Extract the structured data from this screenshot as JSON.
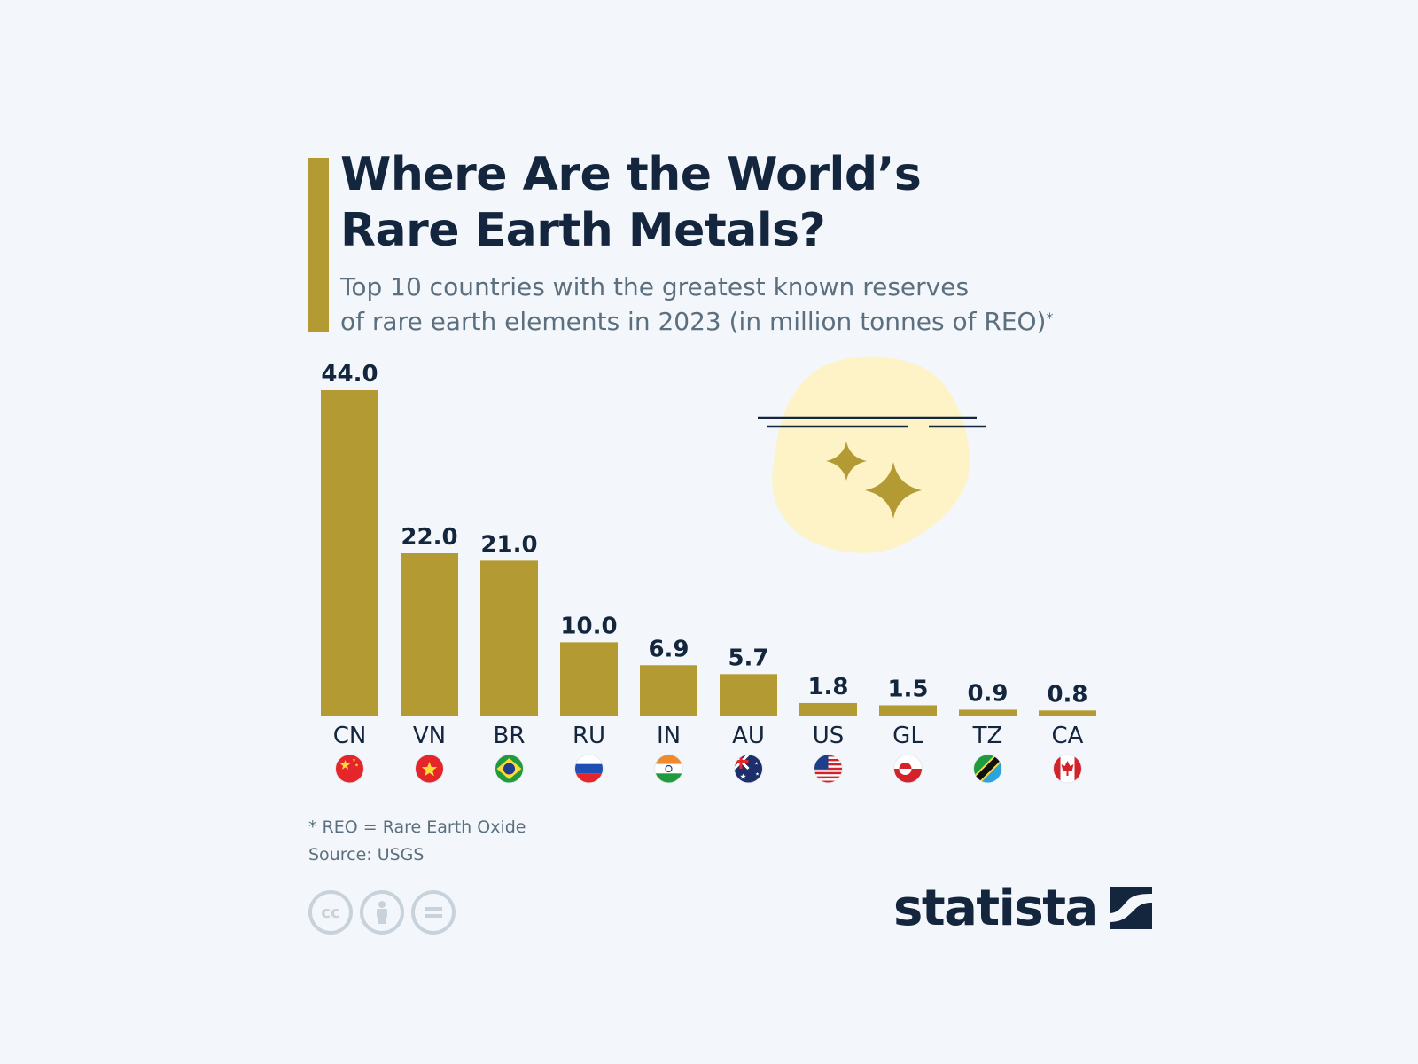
{
  "header": {
    "title_line1": "Where Are the World’s",
    "title_line2": "Rare Earth Metals?",
    "subtitle_line1": "Top 10 countries with the greatest known reserves",
    "subtitle_line2": "of rare earth elements in 2023 (in million tonnes of REO)",
    "subtitle_mark": "*"
  },
  "colors": {
    "bar": "#b39a33",
    "accent": "#b39a33",
    "title": "#14263d",
    "subtitle": "#5c6f7f",
    "background": "#f3f7fb",
    "illustration_blob": "#fdf3c6"
  },
  "chart_data": {
    "type": "bar",
    "categories": [
      "CN",
      "VN",
      "BR",
      "RU",
      "IN",
      "AU",
      "US",
      "GL",
      "TZ",
      "CA"
    ],
    "values": [
      44.0,
      22.0,
      21.0,
      10.0,
      6.9,
      5.7,
      1.8,
      1.5,
      0.9,
      0.8
    ],
    "value_labels": [
      "44.0",
      "22.0",
      "21.0",
      "10.0",
      "6.9",
      "5.7",
      "1.8",
      "1.5",
      "0.9",
      "0.8"
    ],
    "flags": [
      "flag-china-icon",
      "flag-vietnam-icon",
      "flag-brazil-icon",
      "flag-russia-icon",
      "flag-india-icon",
      "flag-australia-icon",
      "flag-usa-icon",
      "flag-greenland-icon",
      "flag-tanzania-icon",
      "flag-canada-icon"
    ],
    "title": "Where Are the World’s Rare Earth Metals?",
    "xlabel": "",
    "ylabel": "",
    "ylim": [
      0,
      44
    ],
    "grid": false,
    "legend": "none"
  },
  "footer": {
    "note": "* REO = Rare Earth Oxide",
    "source": "Source: USGS",
    "license_icons": [
      "cc-icon",
      "attribution-icon",
      "no-derivatives-icon"
    ],
    "brand": "statista"
  }
}
